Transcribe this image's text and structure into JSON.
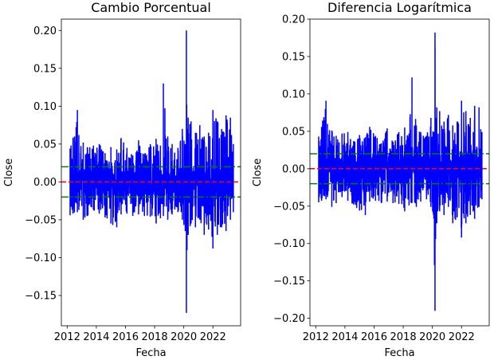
{
  "chart_data": [
    {
      "type": "line",
      "title": "Cambio Porcentual",
      "xlabel": "Fecha",
      "ylabel": "Close",
      "xlim": [
        2011.6,
        2023.9
      ],
      "ylim": [
        -0.19,
        0.215
      ],
      "xticks": [
        2012,
        2014,
        2016,
        2018,
        2020,
        2022
      ],
      "yticks": [
        -0.15,
        -0.1,
        -0.05,
        0.0,
        0.05,
        0.1,
        0.15,
        0.2
      ],
      "ytick_labels": [
        "−0.15",
        "−0.10",
        "−0.05",
        "0.00",
        "0.05",
        "0.10",
        "0.15",
        "0.20"
      ],
      "grid": false,
      "series": [
        {
          "color": "#0000ff",
          "x": [
            2012.2,
            2012.4,
            2012.7,
            2012.8,
            2013.1,
            2013.4,
            2013.8,
            2014.2,
            2014.6,
            2015.0,
            2015.4,
            2015.7,
            2016.1,
            2016.5,
            2016.9,
            2017.3,
            2017.7,
            2018.1,
            2018.4,
            2018.6,
            2018.9,
            2019.2,
            2019.6,
            2019.9,
            2020.1,
            2020.18,
            2020.22,
            2020.3,
            2020.5,
            2020.8,
            2021.1,
            2021.4,
            2021.7,
            2022.0,
            2022.3,
            2022.6,
            2022.9,
            2023.2,
            2023.4
          ],
          "y_high": [
            0.044,
            0.058,
            0.095,
            0.062,
            0.052,
            0.045,
            0.048,
            0.05,
            0.038,
            0.046,
            0.043,
            0.058,
            0.045,
            0.035,
            0.055,
            0.037,
            0.05,
            0.057,
            0.048,
            0.13,
            0.06,
            0.05,
            0.045,
            0.07,
            0.05,
            0.2,
            0.07,
            0.085,
            0.08,
            0.065,
            0.075,
            0.06,
            0.065,
            0.095,
            0.08,
            0.07,
            0.088,
            0.085,
            0.05
          ],
          "y_low": [
            -0.044,
            -0.042,
            -0.04,
            -0.037,
            -0.05,
            -0.045,
            -0.037,
            -0.042,
            -0.047,
            -0.055,
            -0.06,
            -0.043,
            -0.042,
            -0.045,
            -0.043,
            -0.045,
            -0.046,
            -0.055,
            -0.048,
            -0.045,
            -0.05,
            -0.043,
            -0.04,
            -0.05,
            -0.065,
            -0.173,
            -0.09,
            -0.07,
            -0.055,
            -0.06,
            -0.05,
            -0.07,
            -0.063,
            -0.088,
            -0.07,
            -0.06,
            -0.065,
            -0.05,
            -0.04
          ]
        }
      ],
      "reference_lines": [
        {
          "y": 0.0,
          "color": "#ff0000",
          "style": "dashed"
        },
        {
          "y": 0.02,
          "color": "#008000",
          "style": "dashdot"
        },
        {
          "y": -0.02,
          "color": "#008000",
          "style": "dashdot"
        }
      ]
    },
    {
      "type": "line",
      "title": "Diferencia Logarítmica",
      "xlabel": "Fecha",
      "ylabel": "Close",
      "xlim": [
        2011.6,
        2023.9
      ],
      "ylim": [
        -0.21,
        0.2
      ],
      "xticks": [
        2012,
        2014,
        2016,
        2018,
        2020,
        2022
      ],
      "yticks": [
        -0.2,
        -0.15,
        -0.1,
        -0.05,
        0.0,
        0.05,
        0.1,
        0.15,
        0.2
      ],
      "ytick_labels": [
        "−0.20",
        "−0.15",
        "−0.10",
        "−0.05",
        "0.00",
        "0.05",
        "0.10",
        "0.15",
        "0.20"
      ],
      "grid": false,
      "series": [
        {
          "color": "#0000ff",
          "x": [
            2012.2,
            2012.4,
            2012.7,
            2012.8,
            2013.1,
            2013.4,
            2013.8,
            2014.2,
            2014.6,
            2015.0,
            2015.4,
            2015.7,
            2016.1,
            2016.5,
            2016.9,
            2017.3,
            2017.7,
            2018.1,
            2018.4,
            2018.6,
            2018.9,
            2019.2,
            2019.6,
            2019.9,
            2020.1,
            2020.18,
            2020.22,
            2020.3,
            2020.5,
            2020.8,
            2021.1,
            2021.4,
            2021.7,
            2022.0,
            2022.3,
            2022.6,
            2022.9,
            2023.2,
            2023.4
          ],
          "y_high": [
            0.043,
            0.056,
            0.091,
            0.06,
            0.051,
            0.044,
            0.047,
            0.049,
            0.037,
            0.045,
            0.042,
            0.056,
            0.044,
            0.034,
            0.054,
            0.036,
            0.049,
            0.055,
            0.047,
            0.122,
            0.058,
            0.049,
            0.044,
            0.068,
            0.049,
            0.182,
            0.068,
            0.082,
            0.077,
            0.063,
            0.072,
            0.058,
            0.063,
            0.091,
            0.077,
            0.068,
            0.084,
            0.082,
            0.049
          ],
          "y_low": [
            -0.045,
            -0.043,
            -0.041,
            -0.038,
            -0.051,
            -0.046,
            -0.038,
            -0.043,
            -0.048,
            -0.056,
            -0.062,
            -0.044,
            -0.043,
            -0.046,
            -0.044,
            -0.046,
            -0.047,
            -0.057,
            -0.049,
            -0.046,
            -0.051,
            -0.044,
            -0.041,
            -0.051,
            -0.067,
            -0.19,
            -0.094,
            -0.073,
            -0.057,
            -0.062,
            -0.051,
            -0.073,
            -0.065,
            -0.092,
            -0.073,
            -0.062,
            -0.067,
            -0.051,
            -0.041
          ]
        }
      ],
      "reference_lines": [
        {
          "y": 0.0,
          "color": "#ff0000",
          "style": "dashed"
        },
        {
          "y": 0.02,
          "color": "#008000",
          "style": "dashdot"
        },
        {
          "y": -0.02,
          "color": "#008000",
          "style": "dashdot"
        }
      ]
    }
  ]
}
